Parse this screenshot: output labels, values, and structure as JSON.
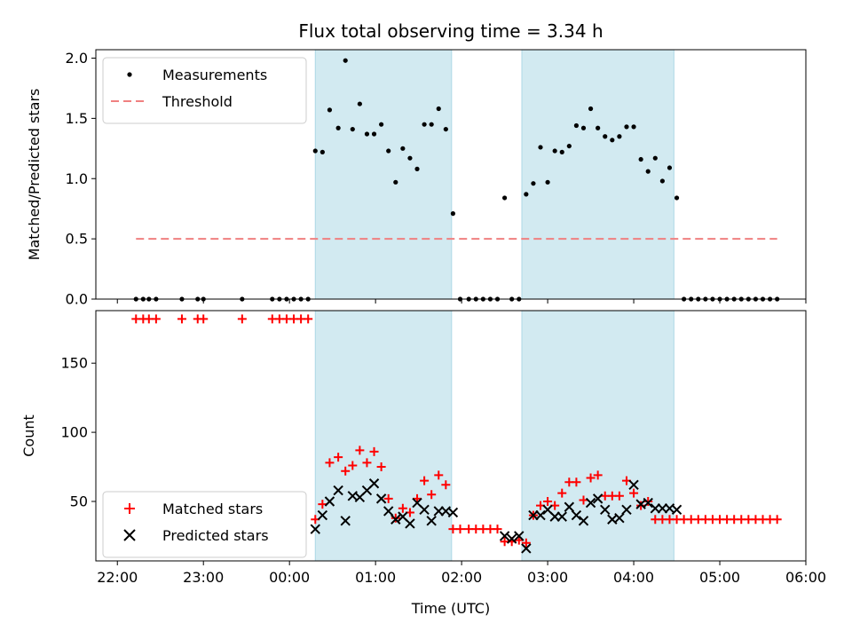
{
  "chart_data": [
    {
      "type": "scatter",
      "title": "Flux total observing time = 3.34 h",
      "xlabel": "",
      "ylabel": "Matched/Predicted stars",
      "ylim": [
        0,
        2.07
      ],
      "yticks": [
        "0.0",
        "0.5",
        "1.0",
        "1.5",
        "2.0"
      ],
      "xlim": [
        "21:45",
        "06:00"
      ],
      "grid": false,
      "legend_position": "upper-left",
      "shaded_intervals": [
        [
          "00:18",
          "01:53"
        ],
        [
          "02:42",
          "04:28"
        ]
      ],
      "shade_color": "#add8e6",
      "series": [
        {
          "name": "Measurements",
          "marker": "dot",
          "color": "#000000",
          "x": [
            "22:13",
            "22:18",
            "22:22",
            "22:27",
            "22:45",
            "22:56",
            "23:00",
            "23:27",
            "23:48",
            "23:53",
            "23:58",
            "00:03",
            "00:08",
            "00:13",
            "00:18",
            "00:23",
            "00:28",
            "00:34",
            "00:39",
            "00:44",
            "00:49",
            "00:54",
            "00:59",
            "01:04",
            "01:09",
            "01:14",
            "01:19",
            "01:24",
            "01:29",
            "01:34",
            "01:39",
            "01:44",
            "01:49",
            "01:54",
            "01:59",
            "02:05",
            "02:10",
            "02:15",
            "02:20",
            "02:25",
            "02:30",
            "02:35",
            "02:40",
            "02:45",
            "02:50",
            "02:55",
            "03:00",
            "03:05",
            "03:10",
            "03:15",
            "03:20",
            "03:25",
            "03:30",
            "03:35",
            "03:40",
            "03:45",
            "03:50",
            "03:55",
            "04:00",
            "04:05",
            "04:10",
            "04:15",
            "04:20",
            "04:25",
            "04:30",
            "04:35",
            "04:40",
            "04:45",
            "04:50",
            "04:55",
            "05:00",
            "05:05",
            "05:10",
            "05:15",
            "05:20",
            "05:25",
            "05:30",
            "05:35",
            "05:40"
          ],
          "y": [
            0,
            0,
            0,
            0,
            0,
            0,
            0,
            0,
            0,
            0,
            0,
            0,
            0,
            0,
            1.23,
            1.22,
            1.57,
            1.42,
            1.98,
            1.41,
            1.62,
            1.37,
            1.37,
            1.45,
            1.23,
            0.97,
            1.25,
            1.17,
            1.08,
            1.45,
            1.45,
            1.58,
            1.41,
            0.71,
            0,
            0,
            0,
            0,
            0,
            0,
            0.84,
            0,
            0,
            0.87,
            0.96,
            1.26,
            0.97,
            1.23,
            1.22,
            1.27,
            1.44,
            1.42,
            1.58,
            1.42,
            1.35,
            1.32,
            1.35,
            1.43,
            1.43,
            1.16,
            1.06,
            1.17,
            0.98,
            1.09,
            0.84,
            0,
            0,
            0,
            0,
            0,
            0,
            0,
            0,
            0,
            0,
            0,
            0,
            0,
            0
          ]
        },
        {
          "name": "Threshold",
          "marker": "dashed-line",
          "color": "#f08080",
          "x": [
            "22:13",
            "05:40"
          ],
          "y": [
            0.5,
            0.5
          ]
        }
      ]
    },
    {
      "type": "scatter",
      "title": "",
      "xlabel": "Time (UTC)",
      "ylabel": "Count",
      "ylim": [
        7,
        188
      ],
      "yticks": [
        "50",
        "100",
        "150"
      ],
      "xlim": [
        "21:45",
        "06:00"
      ],
      "xticks": [
        "22:00",
        "23:00",
        "00:00",
        "01:00",
        "02:00",
        "03:00",
        "04:00",
        "05:00",
        "06:00"
      ],
      "grid": false,
      "legend_position": "lower-left",
      "shaded_intervals": [
        [
          "00:18",
          "01:53"
        ],
        [
          "02:42",
          "04:28"
        ]
      ],
      "shade_color": "#add8e6",
      "series": [
        {
          "name": "Matched stars",
          "marker": "plus",
          "color": "#ff0000",
          "x": [
            "22:13",
            "22:18",
            "22:22",
            "22:27",
            "22:45",
            "22:56",
            "23:00",
            "23:27",
            "23:48",
            "23:53",
            "23:58",
            "00:03",
            "00:08",
            "00:13",
            "00:18",
            "00:23",
            "00:28",
            "00:34",
            "00:39",
            "00:44",
            "00:49",
            "00:54",
            "00:59",
            "01:04",
            "01:09",
            "01:14",
            "01:19",
            "01:24",
            "01:29",
            "01:34",
            "01:39",
            "01:44",
            "01:49",
            "01:54",
            "01:59",
            "02:05",
            "02:10",
            "02:15",
            "02:20",
            "02:25",
            "02:30",
            "02:35",
            "02:40",
            "02:45",
            "02:50",
            "02:55",
            "03:00",
            "03:05",
            "03:10",
            "03:15",
            "03:20",
            "03:25",
            "03:30",
            "03:35",
            "03:40",
            "03:45",
            "03:50",
            "03:55",
            "04:00",
            "04:05",
            "04:10",
            "04:15",
            "04:20",
            "04:25",
            "04:30",
            "04:35",
            "04:40",
            "04:45",
            "04:50",
            "04:55",
            "05:00",
            "05:05",
            "05:10",
            "05:15",
            "05:20",
            "05:25",
            "05:30",
            "05:35",
            "05:40"
          ],
          "y": [
            182,
            182,
            182,
            182,
            182,
            182,
            182,
            182,
            182,
            182,
            182,
            182,
            182,
            182,
            37,
            48,
            78,
            82,
            72,
            76,
            87,
            78,
            86,
            75,
            52,
            38,
            45,
            42,
            52,
            65,
            55,
            69,
            62,
            30,
            30,
            30,
            30,
            30,
            30,
            30,
            21,
            21,
            22,
            20,
            40,
            47,
            50,
            47,
            56,
            64,
            64,
            51,
            67,
            69,
            54,
            54,
            54,
            65,
            56,
            47,
            50,
            37,
            37,
            37,
            37,
            37,
            37,
            37,
            37,
            37,
            37,
            37,
            37,
            37,
            37,
            37,
            37,
            37,
            37
          ]
        },
        {
          "name": "Predicted stars",
          "marker": "x",
          "color": "#000000",
          "x": [
            "00:18",
            "00:23",
            "00:28",
            "00:34",
            "00:39",
            "00:44",
            "00:49",
            "00:54",
            "00:59",
            "01:04",
            "01:09",
            "01:14",
            "01:19",
            "01:24",
            "01:29",
            "01:34",
            "01:39",
            "01:44",
            "01:49",
            "01:54",
            "02:30",
            "02:35",
            "02:40",
            "02:45",
            "02:50",
            "02:55",
            "03:00",
            "03:05",
            "03:10",
            "03:15",
            "03:20",
            "03:25",
            "03:30",
            "03:35",
            "03:40",
            "03:45",
            "03:50",
            "03:55",
            "04:00",
            "04:05",
            "04:10",
            "04:15",
            "04:20",
            "04:25",
            "04:30"
          ],
          "y": [
            30,
            40,
            50,
            58,
            36,
            54,
            53,
            58,
            63,
            52,
            43,
            37,
            39,
            34,
            49,
            44,
            36,
            43,
            43,
            42,
            25,
            23,
            25,
            16,
            40,
            40,
            44,
            39,
            39,
            46,
            40,
            36,
            49,
            52,
            44,
            37,
            38,
            44,
            62,
            48,
            49,
            45,
            45,
            45,
            44
          ]
        }
      ]
    }
  ]
}
